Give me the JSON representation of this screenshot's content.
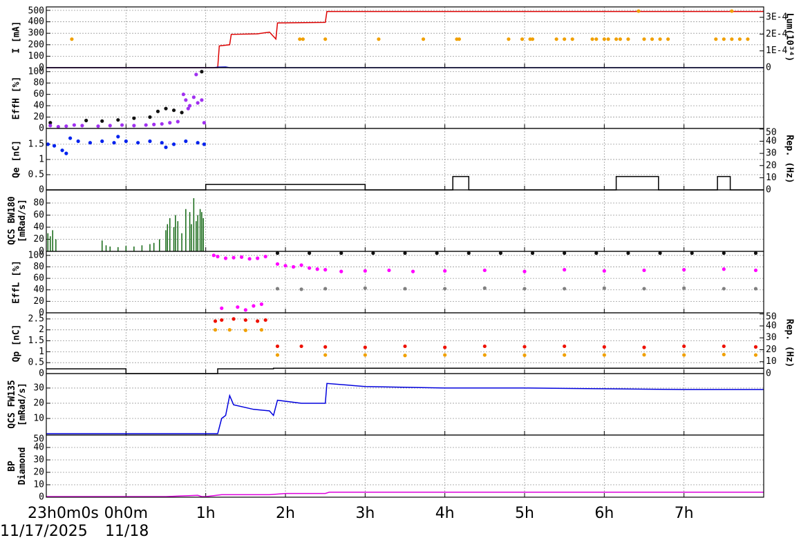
{
  "chart_data": [
    {
      "type": "scatter",
      "ylabel": "I [mA]",
      "y2label": "Lum(10³⁴)",
      "xlim": [
        -1,
        8
      ],
      "ylim": [
        0,
        530
      ],
      "yticks": [
        0,
        100,
        200,
        300,
        400,
        500
      ],
      "y2lim": [
        0,
        0.000362
      ],
      "y2ticks": [
        0,
        {
          "value": 0.0001,
          "label": "1E-4"
        },
        {
          "value": 0.0002,
          "label": "2E-4"
        },
        {
          "value": 0.0003,
          "label": "3E-4"
        }
      ],
      "grid": true,
      "series": [
        {
          "type": "line",
          "color": "#dd0000",
          "x": [
            -1,
            0.99,
            1.15,
            1.17,
            1.3,
            1.32,
            1.65,
            1.8,
            1.88,
            1.9,
            2.5,
            2.52,
            3,
            8
          ],
          "values": [
            0,
            0,
            0,
            190,
            200,
            290,
            295,
            310,
            250,
            390,
            395,
            490,
            490,
            490
          ]
        },
        {
          "type": "line",
          "color": "#0000cc",
          "x": [
            -1,
            1.1,
            1.15,
            1.25,
            1.3,
            8
          ],
          "values": [
            0,
            0,
            4,
            6,
            0,
            0
          ]
        },
        {
          "type": "scatter",
          "axis": "y2",
          "color": "#f0a000",
          "x": [
            -0.68,
            2.18,
            2.22,
            2.5,
            3.17,
            3.73,
            4.15,
            4.18,
            4.8,
            4.97,
            5.07,
            5.1,
            5.4,
            5.5,
            5.6,
            5.85,
            5.9,
            6.0,
            6.05,
            6.15,
            6.2,
            6.3,
            6.43,
            6.5,
            6.6,
            6.7,
            6.8,
            7.4,
            7.5,
            7.6,
            7.7,
            7.8,
            7.6
          ],
          "values": [
            0.00017,
            0.00017,
            0.00017,
            0.00017,
            0.00017,
            0.00017,
            0.00017,
            0.00017,
            0.00017,
            0.00017,
            0.00017,
            0.00017,
            0.00017,
            0.00017,
            0.00017,
            0.00017,
            0.00017,
            0.00017,
            0.00017,
            0.00017,
            0.00017,
            0.00017,
            0.000337,
            0.00017,
            0.00017,
            0.00017,
            0.00017,
            0.00017,
            0.00017,
            0.00017,
            0.00017,
            0.00017,
            0.000337
          ]
        }
      ]
    },
    {
      "type": "scatter",
      "ylabel": "EffH [%]",
      "xlim": [
        -1,
        8
      ],
      "ylim": [
        0,
        107
      ],
      "yticks": [
        0,
        20,
        40,
        60,
        80,
        100
      ],
      "grid": true,
      "series": [
        {
          "type": "scatter",
          "color": "#111111",
          "x": [
            -0.95,
            -0.5,
            -0.3,
            -0.1,
            0.1,
            0.3,
            0.4,
            0.5,
            0.6,
            0.7,
            0.95
          ],
          "values": [
            10,
            14,
            13,
            15,
            18,
            20,
            30,
            35,
            32,
            28,
            100
          ]
        },
        {
          "type": "scatter",
          "color": "#a030f0",
          "x": [
            -0.95,
            -0.85,
            -0.75,
            -0.65,
            -0.55,
            -0.35,
            -0.2,
            -0.05,
            0.1,
            0.25,
            0.35,
            0.45,
            0.55,
            0.65,
            0.72,
            0.75,
            0.8,
            0.85,
            0.9,
            0.95,
            0.98,
            0.88,
            0.78
          ],
          "values": [
            5,
            3,
            4,
            6,
            5,
            4,
            5,
            6,
            5,
            6,
            7,
            8,
            10,
            12,
            60,
            50,
            40,
            55,
            45,
            50,
            10,
            95,
            35
          ]
        }
      ]
    },
    {
      "type": "scatter",
      "ylabel": "Qe [nC]",
      "y2label": "Rep. (Hz)",
      "xlim": [
        -1,
        8
      ],
      "ylim": [
        0,
        2.02
      ],
      "yticks": [
        0,
        0.5,
        1,
        1.5
      ],
      "y2lim": [
        0,
        50.5
      ],
      "y2ticks": [
        0,
        10,
        20,
        30,
        40,
        50
      ],
      "grid": true,
      "series": [
        {
          "type": "scatter",
          "color": "#0022ee",
          "x": [
            -0.98,
            -0.9,
            -0.8,
            -0.7,
            -0.6,
            -0.45,
            -0.3,
            -0.15,
            0,
            0.15,
            0.3,
            0.45,
            0.6,
            0.75,
            0.9,
            0.98,
            -0.75,
            -0.1,
            0.5
          ],
          "values": [
            1.5,
            1.45,
            1.3,
            1.7,
            1.6,
            1.55,
            1.6,
            1.55,
            1.6,
            1.55,
            1.6,
            1.55,
            1.5,
            1.6,
            1.55,
            1.5,
            1.2,
            1.75,
            1.4
          ]
        },
        {
          "type": "line",
          "axis": "y2",
          "color": "#000000",
          "x": [
            -1,
            1,
            1,
            3,
            3,
            4.1,
            4.1,
            4.3,
            4.3,
            6.15,
            6.15,
            6.68,
            6.68,
            7.42,
            7.42,
            7.58,
            7.58,
            8
          ],
          "values": [
            0,
            0,
            4.5,
            4.5,
            0,
            0,
            11,
            11,
            0,
            0,
            11,
            11,
            0,
            0,
            11,
            11,
            0,
            0
          ]
        }
      ]
    },
    {
      "type": "bar",
      "ylabel": "QCS BW180\n[mRad/s]",
      "xlim": [
        -1,
        8
      ],
      "ylim": [
        0,
        101.7
      ],
      "yticks": [
        0,
        20,
        40,
        60,
        80
      ],
      "grid": true,
      "series": [
        {
          "type": "bar",
          "color": "#116611",
          "x": [
            -0.98,
            -0.95,
            -0.92,
            -0.88,
            -0.3,
            -0.25,
            -0.2,
            -0.1,
            0,
            0.1,
            0.2,
            0.3,
            0.35,
            0.42,
            0.5,
            0.52,
            0.55,
            0.6,
            0.62,
            0.65,
            0.7,
            0.75,
            0.8,
            0.82,
            0.85,
            0.88,
            0.9,
            0.93,
            0.95,
            0.97
          ],
          "values": [
            30,
            25,
            35,
            20,
            18,
            10,
            8,
            7,
            9,
            8,
            10,
            12,
            14,
            20,
            35,
            45,
            55,
            40,
            60,
            50,
            30,
            70,
            65,
            45,
            88,
            50,
            60,
            70,
            65,
            55
          ]
        }
      ]
    },
    {
      "type": "scatter",
      "ylabel": "EffL [%]",
      "xlim": [
        -1,
        8
      ],
      "ylim": [
        0,
        107
      ],
      "yticks": [
        0,
        20,
        40,
        60,
        80,
        100
      ],
      "grid": true,
      "series": [
        {
          "type": "scatter",
          "color": "#808080",
          "x": [
            1.9,
            2.2,
            2.5,
            3,
            3.5,
            4,
            4.5,
            5,
            5.5,
            6,
            6.5,
            7,
            7.5,
            7.9
          ],
          "values": [
            42,
            41,
            42,
            43,
            42,
            42,
            43,
            42,
            42,
            43,
            42,
            43,
            42,
            42
          ]
        },
        {
          "type": "scatter",
          "color": "#ff00ff",
          "x": [
            1.15,
            1.25,
            1.35,
            1.45,
            1.55,
            1.65,
            1.75,
            1.2,
            1.4,
            1.6,
            1.9,
            2.0,
            2.1,
            2.2,
            2.3,
            2.4,
            2.5,
            2.7,
            3,
            3.3,
            3.6,
            4,
            4.5,
            5,
            5.5,
            6,
            6.5,
            7,
            7.5,
            7.9,
            1.1,
            1.5,
            1.7
          ],
          "values": [
            98,
            95,
            96,
            97,
            94,
            95,
            98,
            8,
            10,
            12,
            85,
            82,
            80,
            83,
            78,
            76,
            75,
            72,
            73,
            74,
            72,
            73,
            74,
            72,
            75,
            73,
            74,
            75,
            76,
            74,
            100,
            5,
            15
          ]
        },
        {
          "type": "scatter",
          "color": "#111111",
          "x": [
            1.9,
            2.3,
            2.7,
            3.1,
            3.5,
            3.9,
            4.3,
            4.7,
            5.1,
            5.5,
            5.9,
            6.3,
            6.7,
            7.1,
            7.5,
            7.9
          ],
          "values": [
            104,
            104,
            104,
            104,
            104,
            104,
            104,
            104,
            104,
            104,
            104,
            104,
            104,
            104,
            104,
            104
          ]
        }
      ]
    },
    {
      "type": "scatter",
      "ylabel": "Qp [nC]",
      "y2label": "Rep. (Hz)",
      "xlim": [
        -1,
        8
      ],
      "ylim": [
        0,
        2.78
      ],
      "yticks": [
        0,
        0.5,
        1,
        1.5,
        2,
        2.5
      ],
      "y2lim": [
        0,
        51
      ],
      "y2ticks": [
        0,
        10,
        20,
        30,
        40,
        50
      ],
      "grid": true,
      "series": [
        {
          "type": "scatter",
          "color": "#f0a000",
          "x": [
            1.12,
            1.3,
            1.5,
            1.7,
            1.9,
            2.5,
            3,
            3.5,
            4,
            4.5,
            5,
            5.5,
            6,
            6.5,
            7,
            7.5,
            7.9
          ],
          "values": [
            2.0,
            2.0,
            1.98,
            2.0,
            0.85,
            0.85,
            0.85,
            0.83,
            0.85,
            0.85,
            0.84,
            0.85,
            0.85,
            0.86,
            0.85,
            0.87,
            0.85
          ]
        },
        {
          "type": "scatter",
          "color": "#ee1100",
          "x": [
            1.12,
            1.2,
            1.35,
            1.5,
            1.65,
            1.75,
            1.9,
            2.2,
            2.5,
            3,
            3.5,
            4,
            4.5,
            5,
            5.5,
            6,
            6.5,
            7,
            7.5,
            7.9
          ],
          "values": [
            2.4,
            2.45,
            2.5,
            2.45,
            2.4,
            2.45,
            1.25,
            1.25,
            1.22,
            1.2,
            1.25,
            1.2,
            1.25,
            1.23,
            1.25,
            1.22,
            1.2,
            1.25,
            1.25,
            1.22
          ]
        },
        {
          "type": "line",
          "axis": "y2",
          "color": "#000000",
          "x": [
            -1,
            0,
            0,
            1.15,
            1.15,
            1.85,
            1.85,
            8
          ],
          "values": [
            4,
            4,
            0,
            0,
            4,
            4,
            4.5,
            4.5
          ]
        }
      ]
    },
    {
      "type": "line",
      "ylabel": "QCS FW135\n[mRad/s]",
      "xlim": [
        -1,
        8
      ],
      "ylim": [
        -0.9,
        39.5
      ],
      "yticks": [
        10,
        20,
        30
      ],
      "grid": true,
      "series": [
        {
          "type": "line",
          "color": "#0000dd",
          "x": [
            -1,
            1.15,
            1.2,
            1.25,
            1.3,
            1.35,
            1.6,
            1.8,
            1.85,
            1.9,
            2.2,
            2.5,
            2.52,
            3,
            4,
            5,
            6,
            7,
            8
          ],
          "values": [
            0,
            0,
            10,
            12,
            25,
            19,
            16,
            15,
            12,
            22,
            20,
            20,
            33,
            31,
            30,
            30,
            29.5,
            29,
            29
          ]
        }
      ]
    },
    {
      "type": "line",
      "ylabel": "BP\nDiamond",
      "xlim": [
        -1,
        8
      ],
      "ylim": [
        0,
        50
      ],
      "yticks": [
        0,
        10,
        20,
        30,
        40,
        50
      ],
      "grid": true,
      "series": [
        {
          "type": "line",
          "color": "#dd00dd",
          "x": [
            -1,
            0.5,
            0.9,
            0.95,
            1,
            1.2,
            1.8,
            2,
            2.5,
            2.55,
            3,
            5,
            8
          ],
          "values": [
            0.5,
            0.5,
            1.5,
            0.5,
            0.5,
            2,
            2,
            3,
            3,
            4,
            4,
            4,
            4
          ]
        }
      ]
    }
  ],
  "xticks": [
    {
      "value": -1,
      "label": "23h0m0s"
    },
    {
      "value": 0,
      "label": "0h0m"
    },
    {
      "value": 1,
      "label": "1h"
    },
    {
      "value": 2,
      "label": "2h"
    },
    {
      "value": 3,
      "label": "3h"
    },
    {
      "value": 4,
      "label": "4h"
    },
    {
      "value": 5,
      "label": "5h"
    },
    {
      "value": 6,
      "label": "6h"
    },
    {
      "value": 7,
      "label": "7h"
    }
  ],
  "dates": [
    "11/17/2025",
    "11/18"
  ]
}
